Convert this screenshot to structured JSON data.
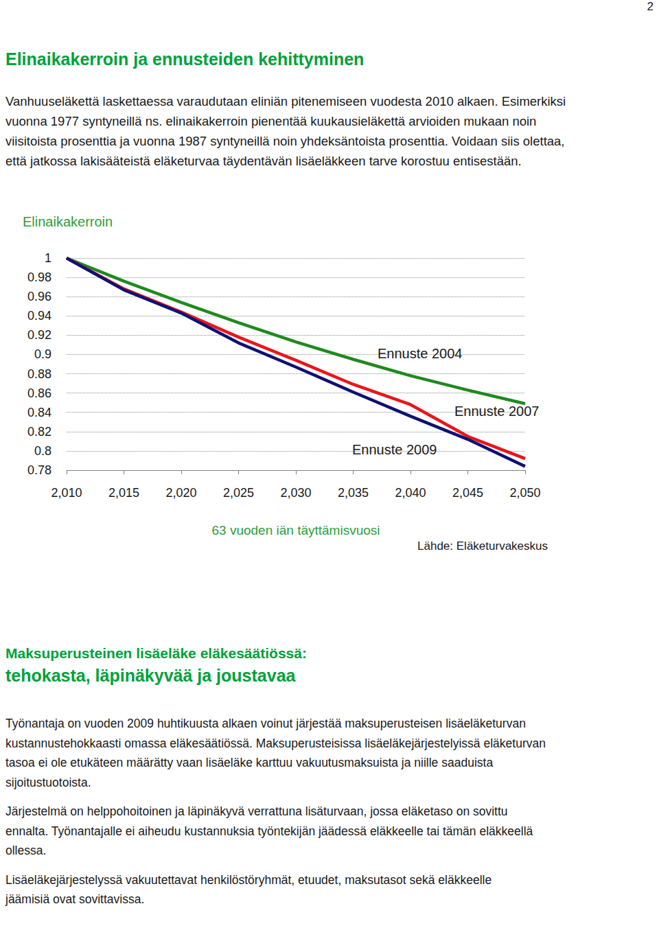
{
  "page_number": "2",
  "heading": "Elinaikakerroin ja ennusteiden kehittyminen",
  "intro": [
    "Vanhuuseläkettä laskettaessa varaudutaan eliniän pitenemiseen vuodesta 2010 alkaen. Esimerkiksi",
    "vuonna 1977 syntyneillä ns. elinaikakerroin pienentää kuukausieläkettä arvioiden mukaan noin",
    "viisitoista prosenttia ja vuonna 1987 syntyneillä noin yhdeksäntoista prosenttia. Voidaan siis olettaa,",
    "että jatkossa lakisääteistä eläketurvaa täydentävän lisäeläkkeen tarve korostuu entisestään."
  ],
  "chart_data": {
    "type": "line",
    "title": "Elinaikakerroin",
    "x_label": "63 vuoden iän täyttämisvuosi",
    "annotations": [
      "Lähde: Eläketurvakeskus"
    ],
    "x": [
      2010,
      2015,
      2020,
      2025,
      2030,
      2035,
      2040,
      2045,
      2050
    ],
    "xlim": [
      2010,
      2050
    ],
    "xticks": [
      2010,
      2015,
      2020,
      2025,
      2030,
      2035,
      2040,
      2045,
      2050
    ],
    "ylim": [
      0.78,
      1
    ],
    "yticks": [
      0.78,
      0.8,
      0.82,
      0.84,
      0.86,
      0.88,
      0.9,
      0.92,
      0.94,
      0.96,
      0.98,
      1
    ],
    "grid": true,
    "series": [
      {
        "name": "Ennuste 2004",
        "color": "#1e8a1e",
        "values": [
          1.0,
          0.976,
          0.954,
          0.933,
          0.913,
          0.895,
          0.878,
          0.863,
          0.849
        ]
      },
      {
        "name": "Ennuste 2007",
        "color": "#e8161b",
        "values": [
          1.0,
          0.968,
          0.944,
          0.918,
          0.894,
          0.869,
          0.848,
          0.815,
          0.792
        ]
      },
      {
        "name": "Ennuste 2009",
        "color": "#0f1173",
        "values": [
          1.0,
          0.967,
          0.943,
          0.912,
          0.887,
          0.861,
          0.836,
          0.812,
          0.784
        ]
      }
    ]
  },
  "section": {
    "heading": "Maksuperusteinen lisäeläke eläkesäätiössä:",
    "subheading": "tehokasta, läpinäkyvää ja joustavaa",
    "paragraphs": [
      [
        "Työnantaja on vuoden 2009 huhtikuusta alkaen voinut järjestää maksuperusteisen lisäeläketurvan",
        "kustannustehokkaasti omassa eläkesäätiössä. Maksuperusteisissa lisäeläkejärjestelyissä eläketurvan",
        "tasoa ei ole etukäteen määrätty vaan lisäeläke karttuu vakuutusmaksuista ja niille saaduista",
        "sijoitustuotoista."
      ],
      [
        "Järjestelmä on helppohoitoinen ja läpinäkyvä verrattuna lisäturvaan, jossa eläketaso on sovittu",
        "ennalta. Työnantajalle ei aiheudu kustannuksia työntekijän jäädessä eläkkeelle tai tämän eläkkeellä",
        "ollessa."
      ],
      [
        "Lisäeläkejärjestelyssä vakuutettavat henkilöstöryhmät, etuudet, maksutasot sekä eläkkeelle",
        "jäämisiä ovat sovittavissa."
      ]
    ]
  }
}
